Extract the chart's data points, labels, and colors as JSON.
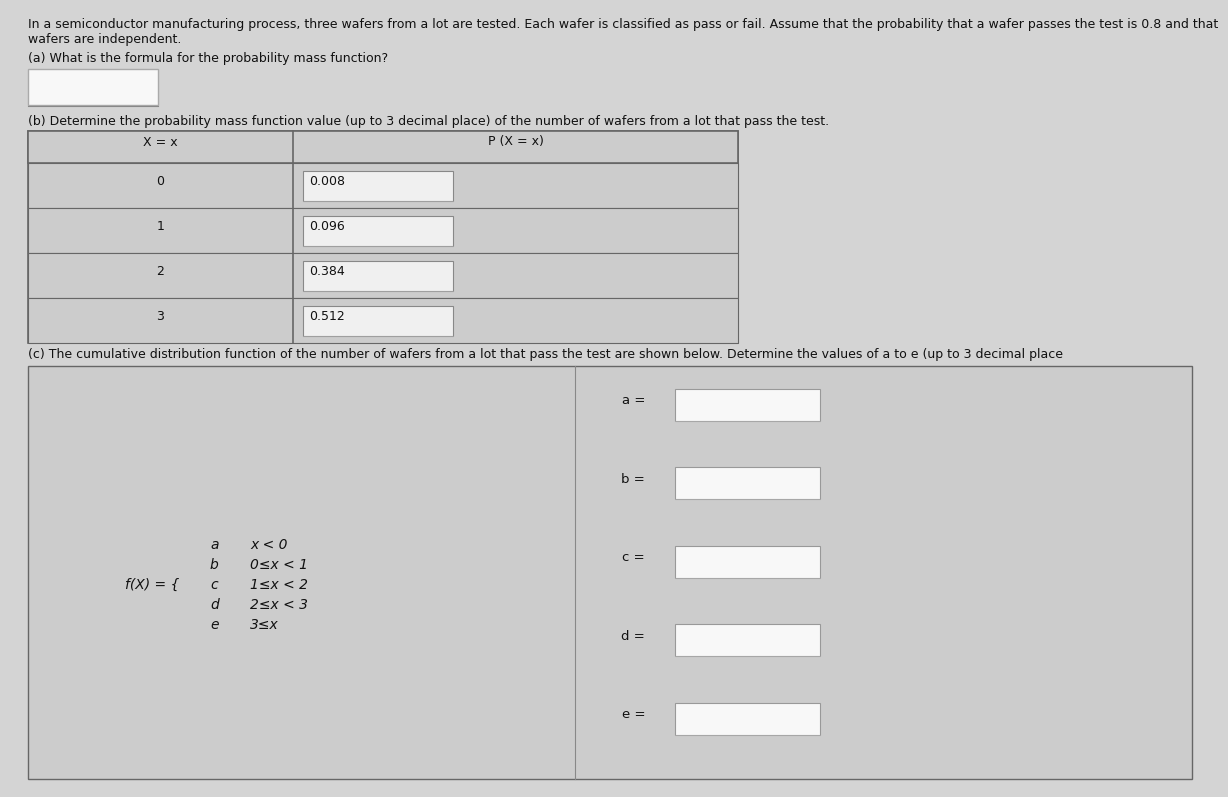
{
  "bg_color": "#d4d4d4",
  "panel_color": "#d4d4d4",
  "table_bg": "#d0d0d0",
  "cell_bg": "#cccccc",
  "input_bg": "#f0f0f0",
  "input_border": "#999999",
  "white": "#f8f8f8",
  "text_color": "#111111",
  "intro_text_line1": "In a semiconductor manufacturing process, three wafers from a lot are tested. Each wafer is classified as pass or fail. Assume that the probability that a wafer passes the test is 0.8 and that",
  "intro_text_line2": "wafers are independent.",
  "part_a_label": "(a) What is the formula for the probability mass function?",
  "part_b_label": "(b) Determine the probability mass function value (up to 3 decimal place) of the number of wafers from a lot that pass the test.",
  "part_c_label": "(c) The cumulative distribution function of the number of wafers from a lot that pass the test are shown below. Determine the values of a to e (up to 3 decimal place",
  "table_b_col1_header": "X = x",
  "table_b_col2_header": "P (X = x)",
  "table_b_rows": [
    {
      "x": "0",
      "p": "0.008"
    },
    {
      "x": "1",
      "p": "0.096"
    },
    {
      "x": "2",
      "p": "0.384"
    },
    {
      "x": "3",
      "p": "0.512"
    }
  ],
  "cdf_formula_prefix": "f(X) = {",
  "cdf_vars": [
    "a",
    "b",
    "c",
    "d",
    "e"
  ],
  "cdf_conditions": [
    "x < 0",
    "0≤x < 1",
    "1≤x < 2",
    "2≤x < 3",
    "3≤x"
  ],
  "cdf_labels": [
    "a =",
    "b =",
    "c =",
    "d =",
    "e ="
  ]
}
